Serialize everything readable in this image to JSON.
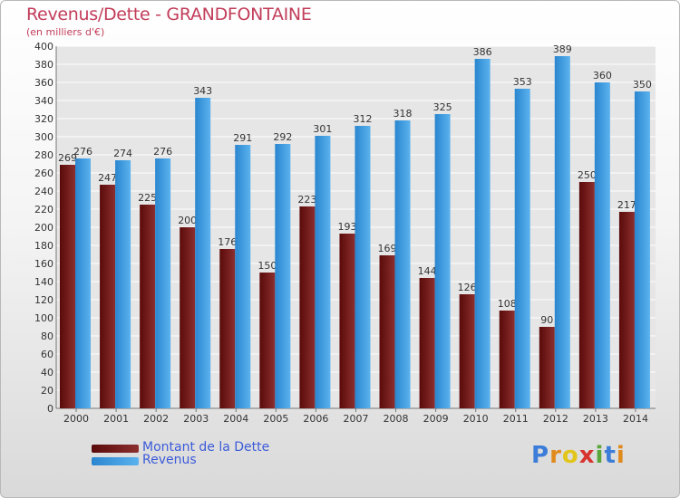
{
  "header": {
    "title": "Revenus/Dette - GRANDFONTAINE",
    "subtitle": "(en milliers d'€)"
  },
  "legend": {
    "items": [
      {
        "label": "Montant de la Dette",
        "color": "#6e1414"
      },
      {
        "label": "Revenus",
        "color": "#3f9ee0"
      }
    ]
  },
  "logo": {
    "text": "Proxiti"
  },
  "colors": {
    "dette_dark": "#5a0a0a",
    "dette_light": "#8c2f2f",
    "revenus_dark": "#2a86cf",
    "revenus_light": "#5bb2ee",
    "title": "#c23d5a",
    "legend_text": "#3b5bd9"
  },
  "chart_data": {
    "type": "bar",
    "title": "Revenus/Dette - GRANDFONTAINE",
    "subtitle": "(en milliers d'€)",
    "categories": [
      "2000",
      "2001",
      "2002",
      "2003",
      "2004",
      "2005",
      "2006",
      "2007",
      "2008",
      "2009",
      "2010",
      "2011",
      "2012",
      "2013",
      "2014"
    ],
    "series": [
      {
        "name": "Montant de la Dette",
        "values": [
          269,
          247,
          225,
          200,
          176,
          150,
          223,
          193,
          169,
          144,
          126,
          108,
          90,
          250,
          217
        ]
      },
      {
        "name": "Revenus",
        "values": [
          276,
          274,
          276,
          343,
          291,
          292,
          301,
          312,
          318,
          325,
          386,
          353,
          389,
          360,
          350
        ]
      }
    ],
    "ylim": [
      0,
      400
    ],
    "ytick_step": 20,
    "grid": true,
    "legend_position": "bottom-left"
  }
}
